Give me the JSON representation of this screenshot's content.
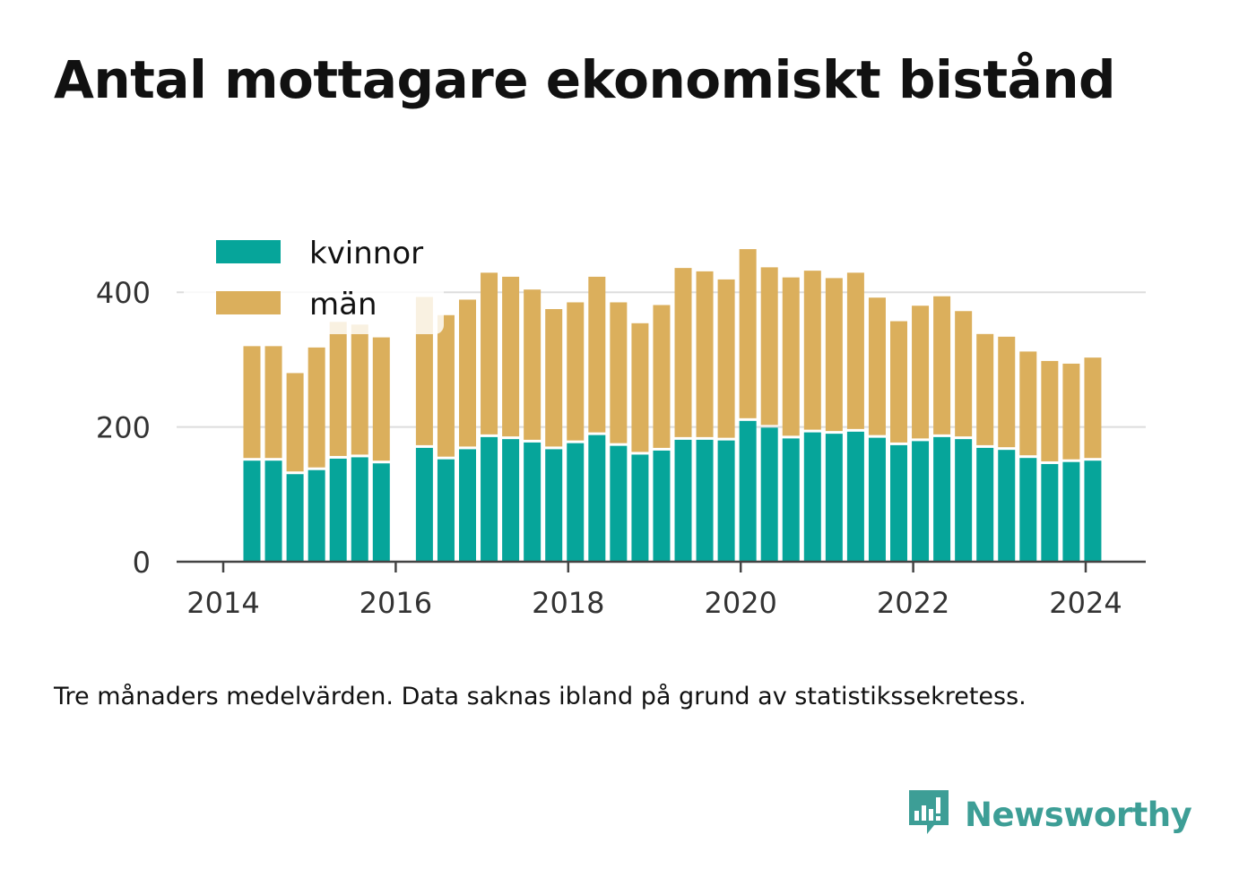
{
  "title": "Antal mottagare ekonomiskt bistånd",
  "note": "Tre månaders medelvärden. Data saknas ibland på grund av statistikssekretess.",
  "brand": {
    "name": "Newsworthy",
    "icon": "newsworthy-logo-icon",
    "color": "#3d9e96"
  },
  "chart_data": {
    "type": "bar",
    "stacked": true,
    "x_ticks": [
      "2014",
      "2016",
      "2018",
      "2020",
      "2022",
      "2024"
    ],
    "ylim": [
      0,
      480
    ],
    "y_ticks": [
      "0",
      "200",
      "400"
    ],
    "y_tick_values": [
      0,
      200,
      400
    ],
    "grid": true,
    "legend_position": "top-left",
    "x": [
      "2014-Q2",
      "2014-Q3",
      "2014-Q4",
      "2015-Q1",
      "2015-Q2",
      "2015-Q3",
      "2015-Q4",
      "2016-Q1",
      "2016-Q2",
      "2016-Q3",
      "2016-Q4",
      "2017-Q1",
      "2017-Q2",
      "2017-Q3",
      "2017-Q4",
      "2018-Q1",
      "2018-Q2",
      "2018-Q3",
      "2018-Q4",
      "2019-Q1",
      "2019-Q2",
      "2019-Q3",
      "2019-Q4",
      "2020-Q1",
      "2020-Q2",
      "2020-Q3",
      "2020-Q4",
      "2021-Q1",
      "2021-Q2",
      "2021-Q3",
      "2021-Q4",
      "2022-Q1",
      "2022-Q2",
      "2022-Q3",
      "2022-Q4",
      "2023-Q1",
      "2023-Q2",
      "2023-Q3",
      "2023-Q4",
      "2024-Q1"
    ],
    "series": [
      {
        "name": "kvinnor",
        "color": "#06a59a",
        "values": [
          150,
          150,
          130,
          136,
          153,
          155,
          146,
          null,
          169,
          152,
          167,
          185,
          182,
          177,
          167,
          176,
          188,
          172,
          159,
          165,
          181,
          181,
          180,
          209,
          199,
          183,
          192,
          190,
          193,
          184,
          173,
          179,
          185,
          182,
          169,
          166,
          154,
          145,
          148,
          150
        ]
      },
      {
        "name": "män",
        "color": "#dbaf5c",
        "values": [
          170,
          170,
          150,
          182,
          203,
          197,
          187,
          null,
          224,
          214,
          222,
          244,
          241,
          227,
          208,
          209,
          235,
          213,
          195,
          216,
          255,
          250,
          239,
          255,
          238,
          239,
          240,
          231,
          236,
          208,
          184,
          201,
          209,
          190,
          169,
          168,
          158,
          153,
          146,
          153
        ]
      }
    ]
  }
}
